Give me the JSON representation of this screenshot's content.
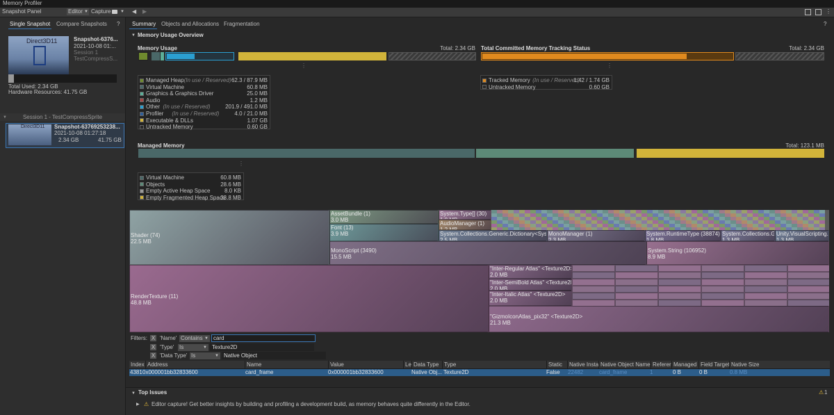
{
  "window": {
    "title": "Memory Profiler"
  },
  "toolbar": {
    "snapshot_panel": "Snapshot Panel",
    "target": "Editor",
    "capture": "Capture"
  },
  "left_panel": {
    "tabs": [
      "Single Snapshot",
      "Compare Snapshots"
    ],
    "open_snapshot": {
      "thumbnail": "Direct3D11",
      "name": "Snapshot-6376...",
      "date": "2021-10-08 01:...",
      "session": "Session 1",
      "project": "TestCompressS..."
    },
    "total_used": "Total Used: 2.34 GB",
    "hardware": "Hardware Resources: 41.75 GB",
    "session": "Session 1 - TestCompressSprite",
    "snapshots": [
      {
        "thumbnail": "Direct3D11",
        "name": "Snapshot-63769253238...",
        "date": "2021-10-08 01:27:18",
        "used": "2.34 GB",
        "hardware": "41.75 GB"
      }
    ]
  },
  "main_tabs": [
    "Summary",
    "Objects and Allocations",
    "Fragmentation"
  ],
  "overview": {
    "title": "Memory Usage Overview",
    "memory_usage": {
      "title": "Memory Usage",
      "total": "Total: 2.34 GB",
      "legend": [
        {
          "name": "Managed Heap",
          "note": "(In use / Reserved)",
          "value": "62.3 / 87.9 MB",
          "color": "#6f8a2e"
        },
        {
          "name": "Virtual Machine",
          "value": "60.8 MB",
          "color": "#4a6868"
        },
        {
          "name": "Graphics & Graphics Driver",
          "value": "25.0 MB",
          "color": "#5cae98"
        },
        {
          "name": "Audio",
          "value": "1.2 MB",
          "color": "#a64646"
        },
        {
          "name": "Other",
          "note": "(In use / Reserved)",
          "value": "201.9 / 491.0 MB",
          "color": "#2b9fd1"
        },
        {
          "name": "Profiler",
          "note": "(In use / Reserved)",
          "value": "4.0 / 21.0 MB",
          "color": "#2f5f9a"
        },
        {
          "name": "Executable & DLLs",
          "value": "1.07 GB",
          "color": "#d2b43a"
        },
        {
          "name": "Untracked Memory",
          "value": "0.60 GB",
          "color": "#2a2a2a"
        }
      ]
    },
    "committed": {
      "title": "Total Committed Memory Tracking Status",
      "total": "Total: 2.34 GB",
      "legend": [
        {
          "name": "Tracked Memory",
          "note": "(In use / Reserved)",
          "value": "1.42 / 1.74 GB",
          "color": "#e08a1e"
        },
        {
          "name": "Untracked Memory",
          "value": "0.60 GB",
          "color": "#2a2a2a"
        }
      ]
    },
    "managed": {
      "title": "Managed Memory",
      "total": "Total: 123.1 MB",
      "legend": [
        {
          "name": "Virtual Machine",
          "value": "60.8 MB",
          "color": "#4a6868"
        },
        {
          "name": "Objects",
          "value": "28.6 MB",
          "color": "#5d8a78"
        },
        {
          "name": "Empty Active Heap Space",
          "value": "8.0 KB",
          "color": "#9a9a9a"
        },
        {
          "name": "Empty Fragmented Heap Space",
          "value": "33.8 MB",
          "color": "#d2b43a"
        }
      ]
    }
  },
  "treemap": {
    "cells": [
      {
        "label": "Shader (74)",
        "size": "22.5 MB"
      },
      {
        "label": "AssetBundle (1)",
        "size": "3.0 MB"
      },
      {
        "label": "Font (13)",
        "size": "3.9 MB"
      },
      {
        "label": "System.Type[] (30)",
        "size": "1.0 MB"
      },
      {
        "label": "AudioManager (1)",
        "size": "1.2 MB"
      },
      {
        "label": "System.Collections.Generic.Dictionary<Syste",
        "size": "2.5 MB"
      },
      {
        "label": "MonoManager (1)",
        "size": "2.3 MB"
      },
      {
        "label": "System.RuntimeType (38874)",
        "size": "1.8 MB"
      },
      {
        "label": "System.Collections.Ge",
        "size": "1.3 MB"
      },
      {
        "label": "Unity.VisualScripting.F",
        "size": "1.3 MB"
      },
      {
        "label": "MonoScript (3490)",
        "size": "15.5 MB"
      },
      {
        "label": "System.String (106952)",
        "size": "8.9 MB"
      },
      {
        "label": "RenderTexture (11)",
        "size": "48.8 MB"
      },
      {
        "label": "\"Inter-Regular Atlas\" <Texture2D>",
        "size": "2.0 MB"
      },
      {
        "label": "\"Inter-SemiBold Atlas\" <Texture2D>",
        "size": "2.0 MB"
      },
      {
        "label": "\"Inter-Italic Atlas\" <Texture2D>",
        "size": "2.0 MB"
      },
      {
        "label": "\"GizmoIconAtlas_pix32\" <Texture2D>",
        "size": "21.3 MB"
      }
    ]
  },
  "filters": {
    "label": "Filters:",
    "rows": [
      {
        "field": "'Name'",
        "operator": "Contains",
        "value": "card"
      },
      {
        "field": "'Type'",
        "operator": "Is",
        "value": "Texture2D"
      },
      {
        "field": "'Data Type'",
        "operator": "Is",
        "value": "Native Object"
      }
    ]
  },
  "table": {
    "columns": [
      "Index",
      "Address",
      "Name",
      "Value",
      "Le",
      "Data Type",
      "Type",
      "Static",
      "Native Insta",
      "Native Object Name",
      "Referer",
      "Managed",
      "Field Target",
      "Native Size"
    ],
    "rows": [
      [
        "4381",
        "0x000001bb32833600",
        "card_frame",
        "0x000001bb32833600",
        null,
        "Native Obj...",
        "Texture2D",
        "False",
        "22482",
        "card_frame",
        "1",
        "0 B",
        "0 B",
        "0.8 MB"
      ]
    ]
  },
  "top_issues": {
    "title": "Top Issues",
    "count": "1",
    "messages": [
      "Editor capture! Get better insights by building and profiling a development build, as memory behaves quite differently in the Editor."
    ]
  }
}
